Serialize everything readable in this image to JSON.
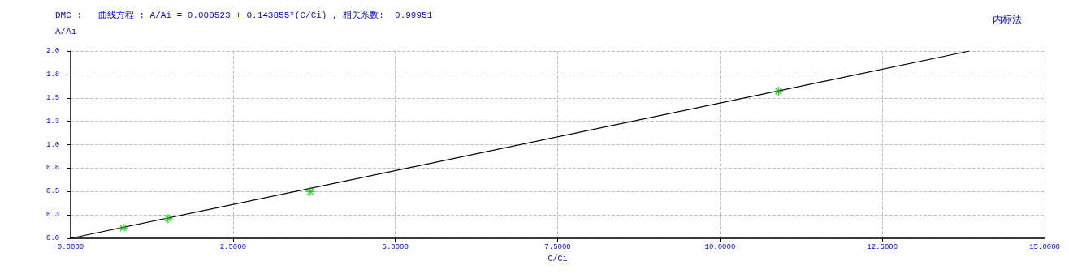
{
  "chart_data": {
    "type": "scatter",
    "title": "DMC :   曲线方程 : A/Ai = 0.000523 + 0.143855*(C/Ci) , 相关系数:  0.99951",
    "xlabel": "C/Ci",
    "ylabel": "A/Ai",
    "annotations": [
      "内标法"
    ],
    "x": [
      0.81,
      1.5,
      3.69,
      10.9
    ],
    "series": [
      {
        "color": "#00c000",
        "marker": "cross",
        "values": [
          0.11,
          0.21,
          0.5,
          1.57
        ]
      },
      {
        "type": "line",
        "color": "#000000",
        "marker": "none",
        "x": [
          0,
          13.84
        ],
        "values": [
          0,
          2.0
        ]
      }
    ],
    "xlim": [
      0,
      15
    ],
    "xticks": [
      {
        "value": 0,
        "label": "0.0000"
      },
      {
        "value": 2.5,
        "label": "2.5000"
      },
      {
        "value": 5,
        "label": "5.0000"
      },
      {
        "value": 7.5,
        "label": "7.5000"
      },
      {
        "value": 10,
        "label": "10.0000"
      },
      {
        "value": 12.5,
        "label": "12.5000"
      },
      {
        "value": 15,
        "label": "15.0000"
      }
    ],
    "ylim": [
      0,
      2
    ],
    "yticks": [
      {
        "value": 0,
        "label": "0.0"
      },
      {
        "value": 0.25,
        "label": "0.3"
      },
      {
        "value": 0.5,
        "label": "0.5"
      },
      {
        "value": 0.75,
        "label": "0.8"
      },
      {
        "value": 1,
        "label": "1.0"
      },
      {
        "value": 1.25,
        "label": "1.3"
      },
      {
        "value": 1.5,
        "label": "1.5"
      },
      {
        "value": 1.75,
        "label": "1.8"
      },
      {
        "value": 2,
        "label": "2.0"
      }
    ],
    "grid": true
  }
}
